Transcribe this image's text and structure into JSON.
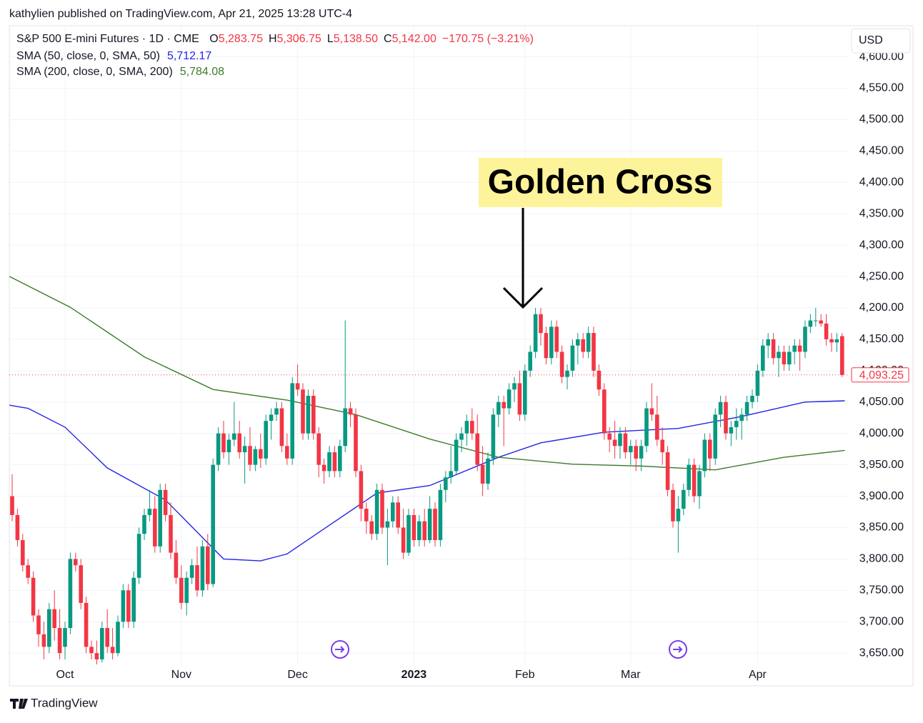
{
  "header": {
    "publisher": "kathylien published on TradingView.com, Apr 21, 2025 13:28 UTC-4",
    "logo": "TradingView"
  },
  "chart_data": {
    "type": "candlestick",
    "symbol": "S&P 500 E-mini Futures · 1D · CME",
    "ohlc_legend": [
      {
        "key": "O",
        "text": "5,283.75"
      },
      {
        "key": "H",
        "text": "5,306.75"
      },
      {
        "key": "L",
        "text": "5,138.50"
      },
      {
        "key": "C",
        "text": "5,142.00"
      }
    ],
    "change": "−170.75 (−3.21%)",
    "currency": "USD",
    "annotation": "Golden Cross",
    "last_label": "4,093.25",
    "up_color": "#089981",
    "down_color": "#f23645",
    "ylim": [
      3632,
      4645
    ],
    "yticks": [
      {
        "value": 3650,
        "label": "3,650.00"
      },
      {
        "value": 3700,
        "label": "3,700.00"
      },
      {
        "value": 3750,
        "label": "3,750.00"
      },
      {
        "value": 3800,
        "label": "3,800.00"
      },
      {
        "value": 3850,
        "label": "3,850.00"
      },
      {
        "value": 3900,
        "label": "3,900.00"
      },
      {
        "value": 3950,
        "label": "3,950.00"
      },
      {
        "value": 4000,
        "label": "4,000.00"
      },
      {
        "value": 4050,
        "label": "4,050.00"
      },
      {
        "value": 4100,
        "label": "4,100.00"
      },
      {
        "value": 4150,
        "label": "4,150.00"
      },
      {
        "value": 4200,
        "label": "4,200.00"
      },
      {
        "value": 4250,
        "label": "4,250.00"
      },
      {
        "value": 4300,
        "label": "4,300.00"
      },
      {
        "value": 4350,
        "label": "4,350.00"
      },
      {
        "value": 4400,
        "label": "4,400.00"
      },
      {
        "value": 4450,
        "label": "4,450.00"
      },
      {
        "value": 4500,
        "label": "4,500.00"
      },
      {
        "value": 4550,
        "label": "4,550.00"
      },
      {
        "value": 4600,
        "label": "4,600.00"
      }
    ],
    "xlim": [
      -0.5,
      170.5
    ],
    "xticks": [
      {
        "value": 10,
        "label": "Oct"
      },
      {
        "value": 32,
        "label": "Nov"
      },
      {
        "value": 54,
        "label": "Dec"
      },
      {
        "value": 76,
        "label": "2023"
      },
      {
        "value": 97,
        "label": "Feb"
      },
      {
        "value": 117,
        "label": "Mar"
      },
      {
        "value": 141,
        "label": "Apr"
      }
    ],
    "grid": true,
    "candles": [
      [
        3900,
        3935,
        3860,
        3870
      ],
      [
        3870,
        3880,
        3820,
        3830
      ],
      [
        3830,
        3840,
        3780,
        3790
      ],
      [
        3790,
        3800,
        3760,
        3770
      ],
      [
        3770,
        3780,
        3700,
        3710
      ],
      [
        3710,
        3720,
        3660,
        3680
      ],
      [
        3680,
        3700,
        3640,
        3660
      ],
      [
        3660,
        3730,
        3650,
        3720
      ],
      [
        3720,
        3750,
        3670,
        3690
      ],
      [
        3690,
        3720,
        3640,
        3650
      ],
      [
        3660,
        3700,
        3640,
        3690
      ],
      [
        3690,
        3810,
        3680,
        3800
      ],
      [
        3800,
        3810,
        3780,
        3790
      ],
      [
        3790,
        3800,
        3720,
        3730
      ],
      [
        3730,
        3740,
        3650,
        3660
      ],
      [
        3660,
        3670,
        3640,
        3650
      ],
      [
        3650,
        3670,
        3630,
        3640
      ],
      [
        3640,
        3700,
        3635,
        3690
      ],
      [
        3690,
        3720,
        3650,
        3660
      ],
      [
        3660,
        3690,
        3640,
        3650
      ],
      [
        3650,
        3710,
        3645,
        3700
      ],
      [
        3700,
        3760,
        3690,
        3750
      ],
      [
        3750,
        3760,
        3690,
        3700
      ],
      [
        3700,
        3780,
        3690,
        3770
      ],
      [
        3770,
        3850,
        3760,
        3840
      ],
      [
        3840,
        3880,
        3830,
        3870
      ],
      [
        3870,
        3910,
        3860,
        3880
      ],
      [
        3880,
        3900,
        3810,
        3820
      ],
      [
        3820,
        3920,
        3810,
        3910
      ],
      [
        3910,
        3920,
        3860,
        3870
      ],
      [
        3870,
        3890,
        3800,
        3810
      ],
      [
        3810,
        3830,
        3760,
        3770
      ],
      [
        3770,
        3790,
        3720,
        3730
      ],
      [
        3730,
        3780,
        3710,
        3770
      ],
      [
        3770,
        3800,
        3760,
        3790
      ],
      [
        3790,
        3820,
        3740,
        3750
      ],
      [
        3750,
        3830,
        3740,
        3820
      ],
      [
        3820,
        3840,
        3750,
        3760
      ],
      [
        3760,
        3960,
        3755,
        3950
      ],
      [
        3950,
        4010,
        3940,
        4000
      ],
      [
        4000,
        4020,
        3960,
        3970
      ],
      [
        3970,
        4000,
        3950,
        3990
      ],
      [
        3990,
        4050,
        3980,
        4000
      ],
      [
        4000,
        4020,
        3960,
        3970
      ],
      [
        3970,
        3995,
        3920,
        3980
      ],
      [
        3980,
        4010,
        3940,
        3950
      ],
      [
        3950,
        3980,
        3940,
        3975
      ],
      [
        3975,
        4000,
        3945,
        3960
      ],
      [
        3960,
        4030,
        3950,
        4020
      ],
      [
        4020,
        4040,
        3990,
        4030
      ],
      [
        4030,
        4050,
        4020,
        4040
      ],
      [
        4040,
        4050,
        3970,
        3980
      ],
      [
        3980,
        4000,
        3950,
        3960
      ],
      [
        3960,
        4090,
        3950,
        4080
      ],
      [
        4080,
        4110,
        4060,
        4070
      ],
      [
        4070,
        4080,
        3990,
        4000
      ],
      [
        4000,
        4070,
        3990,
        4060
      ],
      [
        4060,
        4070,
        3990,
        4000
      ],
      [
        4000,
        4010,
        3930,
        3950
      ],
      [
        3950,
        3960,
        3920,
        3940
      ],
      [
        3940,
        3980,
        3930,
        3970
      ],
      [
        3970,
        3980,
        3930,
        3940
      ],
      [
        3940,
        3990,
        3930,
        3980
      ],
      [
        3980,
        4180,
        3970,
        4040
      ],
      [
        4040,
        4050,
        4010,
        4030
      ],
      [
        4030,
        4040,
        3930,
        3940
      ],
      [
        3940,
        3950,
        3860,
        3880
      ],
      [
        3880,
        3890,
        3840,
        3860
      ],
      [
        3860,
        3870,
        3830,
        3840
      ],
      [
        3840,
        3920,
        3830,
        3910
      ],
      [
        3910,
        3920,
        3840,
        3850
      ],
      [
        3850,
        3880,
        3790,
        3860
      ],
      [
        3860,
        3900,
        3850,
        3890
      ],
      [
        3890,
        3900,
        3840,
        3850
      ],
      [
        3850,
        3880,
        3800,
        3810
      ],
      [
        3810,
        3880,
        3805,
        3870
      ],
      [
        3870,
        3880,
        3820,
        3830
      ],
      [
        3830,
        3870,
        3820,
        3860
      ],
      [
        3860,
        3880,
        3820,
        3830
      ],
      [
        3830,
        3900,
        3825,
        3880
      ],
      [
        3880,
        3890,
        3820,
        3830
      ],
      [
        3830,
        3920,
        3820,
        3910
      ],
      [
        3910,
        3940,
        3890,
        3930
      ],
      [
        3930,
        3980,
        3920,
        3940
      ],
      [
        3940,
        4000,
        3935,
        3990
      ],
      [
        3990,
        4010,
        3970,
        4000
      ],
      [
        4000,
        4030,
        3980,
        4020
      ],
      [
        4020,
        4040,
        3990,
        4000
      ],
      [
        4000,
        4030,
        3940,
        3950
      ],
      [
        3950,
        3980,
        3900,
        3920
      ],
      [
        3920,
        3970,
        3910,
        3960
      ],
      [
        3960,
        4040,
        3950,
        4030
      ],
      [
        4030,
        4060,
        4010,
        4050
      ],
      [
        4050,
        4060,
        3980,
        4040
      ],
      [
        4040,
        4080,
        4030,
        4070
      ],
      [
        4070,
        4090,
        4050,
        4080
      ],
      [
        4080,
        4100,
        4020,
        4030
      ],
      [
        4030,
        4110,
        4020,
        4100
      ],
      [
        4100,
        4140,
        4090,
        4130
      ],
      [
        4130,
        4200,
        4120,
        4190
      ],
      [
        4190,
        4200,
        4140,
        4160
      ],
      [
        4160,
        4170,
        4110,
        4120
      ],
      [
        4120,
        4180,
        4110,
        4170
      ],
      [
        4170,
        4180,
        4120,
        4130
      ],
      [
        4130,
        4140,
        4080,
        4090
      ],
      [
        4090,
        4110,
        4070,
        4100
      ],
      [
        4100,
        4150,
        4090,
        4140
      ],
      [
        4140,
        4160,
        4110,
        4150
      ],
      [
        4150,
        4160,
        4120,
        4130
      ],
      [
        4130,
        4170,
        4120,
        4160
      ],
      [
        4160,
        4170,
        4090,
        4100
      ],
      [
        4100,
        4110,
        4060,
        4070
      ],
      [
        4070,
        4080,
        3990,
        4000
      ],
      [
        4000,
        4010,
        3970,
        3990
      ],
      [
        3990,
        4020,
        3960,
        3980
      ],
      [
        3980,
        4010,
        3960,
        4000
      ],
      [
        4000,
        4010,
        3960,
        3970
      ],
      [
        3970,
        3990,
        3950,
        3980
      ],
      [
        3980,
        3990,
        3940,
        3960
      ],
      [
        3960,
        3990,
        3940,
        3980
      ],
      [
        3980,
        4050,
        3970,
        4040
      ],
      [
        4040,
        4080,
        4020,
        4030
      ],
      [
        4030,
        4060,
        3980,
        3990
      ],
      [
        3990,
        4010,
        3950,
        3970
      ],
      [
        3970,
        3980,
        3900,
        3910
      ],
      [
        3910,
        3920,
        3850,
        3860
      ],
      [
        3860,
        3900,
        3810,
        3880
      ],
      [
        3880,
        3920,
        3870,
        3910
      ],
      [
        3910,
        3960,
        3900,
        3950
      ],
      [
        3950,
        3960,
        3890,
        3900
      ],
      [
        3900,
        3950,
        3880,
        3940
      ],
      [
        3940,
        4000,
        3930,
        3990
      ],
      [
        3990,
        4000,
        3940,
        3960
      ],
      [
        3960,
        4040,
        3950,
        4030
      ],
      [
        4030,
        4060,
        4010,
        4050
      ],
      [
        4050,
        4060,
        3990,
        4000
      ],
      [
        4000,
        4020,
        3980,
        4010
      ],
      [
        4010,
        4040,
        3990,
        4020
      ],
      [
        4020,
        4040,
        3990,
        4030
      ],
      [
        4030,
        4060,
        4020,
        4050
      ],
      [
        4050,
        4070,
        4040,
        4060
      ],
      [
        4060,
        4110,
        4050,
        4100
      ],
      [
        4100,
        4150,
        4090,
        4140
      ],
      [
        4140,
        4160,
        4120,
        4150
      ],
      [
        4150,
        4160,
        4110,
        4120
      ],
      [
        4120,
        4140,
        4090,
        4130
      ],
      [
        4130,
        4140,
        4100,
        4110
      ],
      [
        4110,
        4140,
        4100,
        4130
      ],
      [
        4130,
        4150,
        4110,
        4140
      ],
      [
        4140,
        4150,
        4100,
        4130
      ],
      [
        4130,
        4180,
        4120,
        4170
      ],
      [
        4170,
        4190,
        4160,
        4180
      ],
      [
        4180,
        4200,
        4170,
        4180
      ],
      [
        4180,
        4190,
        4170,
        4175
      ],
      [
        4175,
        4190,
        4140,
        4150
      ],
      [
        4150,
        4160,
        4130,
        4145
      ],
      [
        4145,
        4160,
        4130,
        4150
      ],
      [
        4155,
        4160,
        4090,
        4093.25
      ]
    ],
    "series": [
      {
        "name": "SMA (50, close, 0, SMA, 50)",
        "last_text": "5,712.17",
        "color": "#2424e6",
        "x": [
          -0.5,
          3,
          10,
          18,
          29,
          40,
          47,
          52,
          59,
          69,
          79,
          92,
          100,
          112,
          126,
          138,
          150,
          157.5
        ],
        "values": [
          4045,
          4040,
          4010,
          3945,
          3894,
          3800,
          3797,
          3808,
          3848,
          3905,
          3917,
          3962,
          3985,
          4002,
          4008,
          4027,
          4050,
          4052
        ]
      },
      {
        "name": "SMA (200, close, 0, SMA, 200)",
        "last_text": "5,784.08",
        "color": "#3d7b2c",
        "x": [
          -0.5,
          11,
          25,
          38,
          52,
          65,
          79,
          92,
          106,
          119,
          133,
          146,
          157.5
        ],
        "values": [
          4250,
          4201,
          4122,
          4070,
          4053,
          4030,
          3991,
          3962,
          3951,
          3948,
          3942,
          3962,
          3973
        ]
      }
    ]
  }
}
